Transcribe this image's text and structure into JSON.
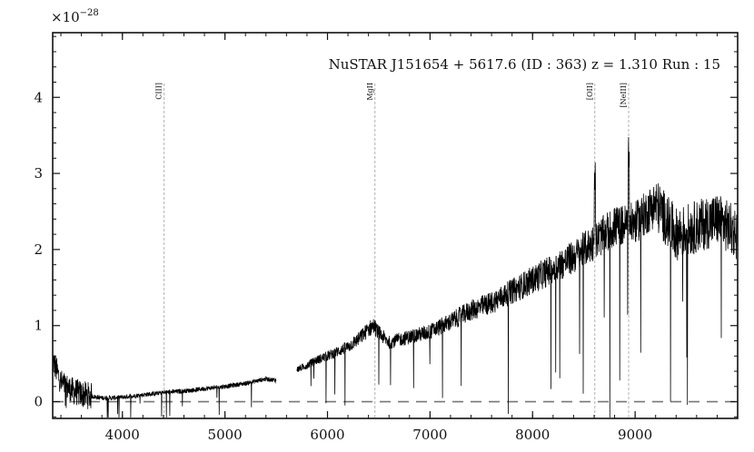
{
  "chart_data": {
    "type": "line",
    "title": "NuSTAR J151654 + 5617.6 (ID : 363)   z = 1.310   Run : 15",
    "xlabel": "",
    "ylabel": "",
    "y_scale_label": "×10",
    "y_scale_exponent": "−28",
    "xlim": [
      3320,
      10000
    ],
    "ylim": [
      -0.22,
      4.85
    ],
    "x_ticks": [
      4000,
      5000,
      6000,
      7000,
      8000,
      9000
    ],
    "x_tick_labels": [
      "4000",
      "5000",
      "6000",
      "7000",
      "8000",
      "9000"
    ],
    "y_ticks": [
      0,
      1,
      2,
      3,
      4
    ],
    "y_tick_labels": [
      "0",
      "1",
      "2",
      "3",
      "4"
    ],
    "grid": false,
    "zero_line": {
      "y": 0,
      "style": "dashed"
    },
    "emission_lines": [
      {
        "name": "CIII]",
        "x": 4407
      },
      {
        "name": "MgII",
        "x": 6463
      },
      {
        "name": "[OII]",
        "x": 8607
      },
      {
        "name": "[NeIII]",
        "x": 8937
      }
    ],
    "series": [
      {
        "segments": [
          {
            "x": [
              3320,
              3400,
              3500,
              3600,
              3700,
              3800,
              3900,
              4000,
              4200,
              4400,
              4600,
              4800,
              5000,
              5200,
              5400,
              5500
            ],
            "y": [
              0.55,
              0.25,
              0.15,
              0.1,
              0.07,
              0.05,
              0.05,
              0.06,
              0.09,
              0.12,
              0.14,
              0.17,
              0.2,
              0.24,
              0.3,
              0.28
            ]
          },
          {
            "x": [
              5700,
              5800,
              5900,
              6000,
              6100,
              6200,
              6300,
              6400,
              6450,
              6500,
              6600,
              6800,
              7000,
              7200,
              7400,
              7600,
              7800,
              8000,
              8200,
              8400,
              8600,
              8800,
              9000,
              9200,
              9400,
              9600,
              9800,
              10000
            ],
            "y": [
              0.42,
              0.48,
              0.55,
              0.6,
              0.66,
              0.72,
              0.82,
              0.95,
              1.0,
              0.9,
              0.78,
              0.85,
              0.92,
              1.05,
              1.2,
              1.3,
              1.45,
              1.6,
              1.75,
              1.9,
              2.1,
              2.3,
              2.35,
              2.6,
              2.2,
              2.3,
              2.4,
              2.2
            ]
          }
        ]
      }
    ]
  }
}
